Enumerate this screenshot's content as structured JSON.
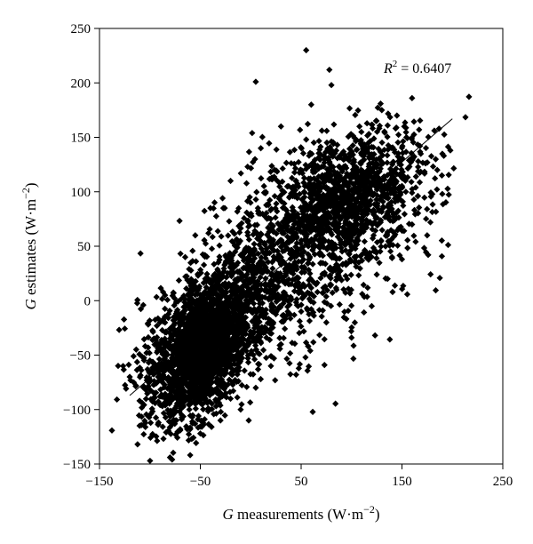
{
  "chart_data": {
    "type": "scatter",
    "title": "",
    "xlabel": {
      "var": "G",
      "text": " measurements (W·m",
      "exp": "−2",
      "close": ")"
    },
    "ylabel": {
      "var": "G",
      "text": " estimates (W·m",
      "exp": "−2",
      "close": ")"
    },
    "xlim": [
      -150,
      250
    ],
    "ylim": [
      -150,
      250
    ],
    "xticks": [
      -150,
      -50,
      50,
      150,
      250
    ],
    "yticks": [
      250,
      200,
      150,
      100,
      50,
      0,
      -50,
      -100,
      -150
    ],
    "xtick_labels": [
      "−150",
      "−50",
      "50",
      "150",
      "250"
    ],
    "ytick_labels": [
      "250",
      "200",
      "150",
      "100",
      "50",
      "0",
      "−50",
      "−100",
      "−150"
    ],
    "grid": false,
    "annotation": {
      "var": "R",
      "exp": "2",
      "text": " = 0.6407"
    },
    "fit_line": {
      "x": [
        -120,
        200
      ],
      "y": [
        -87,
        167
      ]
    },
    "marker": "diamond",
    "marker_color": "#000000",
    "clusters": [
      {
        "cx": -50,
        "cy": -50,
        "sx": 22,
        "sy": 30,
        "n": 1500,
        "rho": 0.4
      },
      {
        "cx": -40,
        "cy": -30,
        "sx": 35,
        "sy": 35,
        "n": 900,
        "rho": 0.5
      },
      {
        "cx": 20,
        "cy": 40,
        "sx": 45,
        "sy": 45,
        "n": 700,
        "rho": 0.55
      },
      {
        "cx": 100,
        "cy": 100,
        "sx": 35,
        "sy": 28,
        "n": 900,
        "rho": 0.3
      },
      {
        "cx": 80,
        "cy": 50,
        "sx": 55,
        "sy": 50,
        "n": 500,
        "rho": 0.5
      }
    ],
    "points": [
      {
        "x": 55,
        "y": 230
      },
      {
        "x": 78,
        "y": 212
      },
      {
        "x": 5,
        "y": 201
      },
      {
        "x": 80,
        "y": 198
      },
      {
        "x": 160,
        "y": 186
      },
      {
        "x": 198,
        "y": 138
      },
      {
        "x": 190,
        "y": 98
      },
      {
        "x": 176,
        "y": 42
      },
      {
        "x": 150,
        "y": 38
      },
      {
        "x": 125,
        "y": 24
      },
      {
        "x": 50,
        "y": -10
      },
      {
        "x": 75,
        "y": -20
      },
      {
        "x": 100,
        "y": -34
      },
      {
        "x": 45,
        "y": -68
      },
      {
        "x": -10,
        "y": -100
      },
      {
        "x": -2,
        "y": -110
      },
      {
        "x": -30,
        "y": -110
      },
      {
        "x": -50,
        "y": -122
      },
      {
        "x": -90,
        "y": -88
      },
      {
        "x": -120,
        "y": -70
      },
      {
        "x": -100,
        "y": -55
      },
      {
        "x": -90,
        "y": -20
      },
      {
        "x": -85,
        "y": 5
      },
      {
        "x": -65,
        "y": 40
      },
      {
        "x": -55,
        "y": 60
      },
      {
        "x": -40,
        "y": 85
      },
      {
        "x": 145,
        "y": 170
      },
      {
        "x": 130,
        "y": 175
      },
      {
        "x": 167,
        "y": 157
      },
      {
        "x": 185,
        "y": 120
      },
      {
        "x": 175,
        "y": 60
      },
      {
        "x": 160,
        "y": 70
      },
      {
        "x": 60,
        "y": 180
      },
      {
        "x": 30,
        "y": 160
      },
      {
        "x": 10,
        "y": 140
      },
      {
        "x": -20,
        "y": 110
      },
      {
        "x": 120,
        "y": -5
      },
      {
        "x": 85,
        "y": 10
      },
      {
        "x": 30,
        "y": -40
      },
      {
        "x": 20,
        "y": -60
      },
      {
        "x": 5,
        "y": -80
      },
      {
        "x": -20,
        "y": -90
      },
      {
        "x": -75,
        "y": -110
      },
      {
        "x": -60,
        "y": -118
      }
    ]
  }
}
